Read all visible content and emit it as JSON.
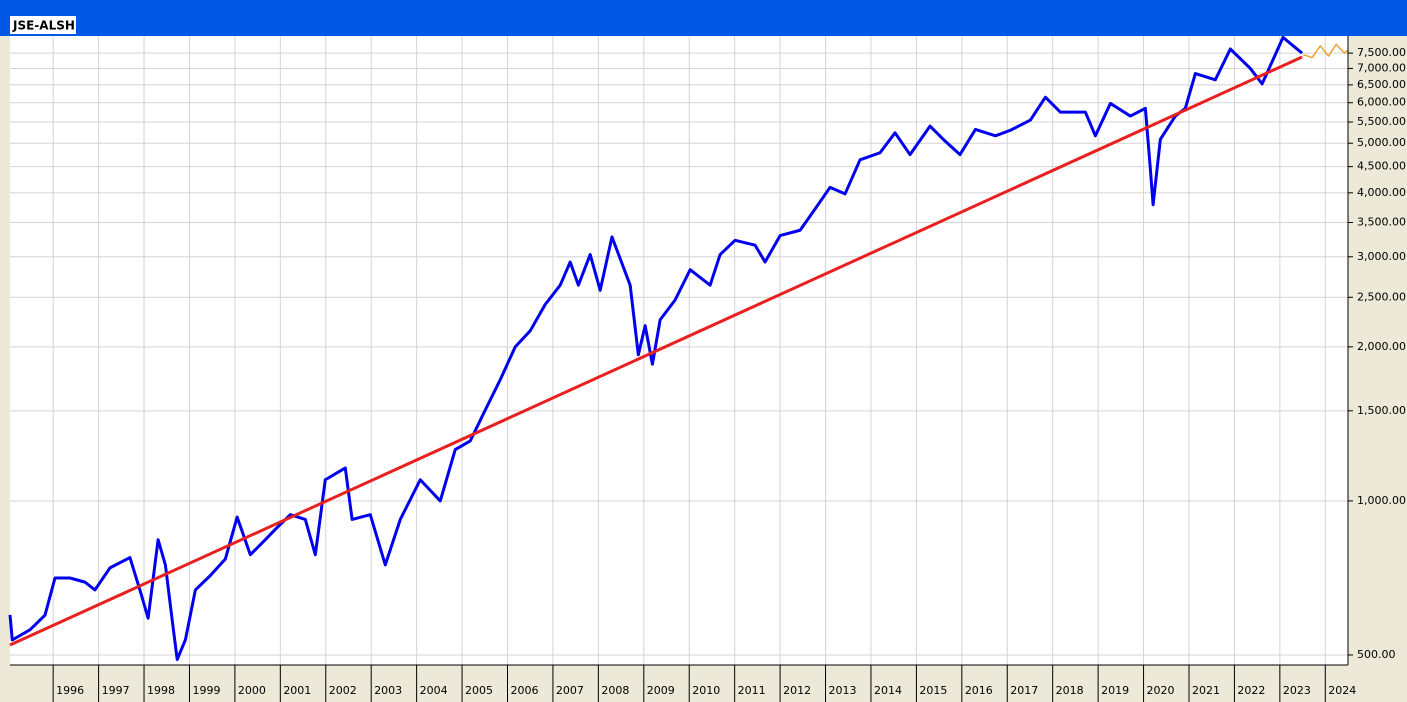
{
  "chart_data": {
    "type": "line",
    "title": "JSE-ALSH",
    "log_scale": true,
    "grid": true,
    "xlim": [
      1995.05,
      2024.5
    ],
    "xticks": [
      1996,
      1997,
      1998,
      1999,
      2000,
      2001,
      2002,
      2003,
      2004,
      2005,
      2006,
      2007,
      2008,
      2009,
      2010,
      2011,
      2012,
      2013,
      2014,
      2015,
      2016,
      2017,
      2018,
      2019,
      2020,
      2021,
      2022,
      2023,
      2024
    ],
    "ylim": [
      478,
      8100
    ],
    "yticks": [
      {
        "value": 500,
        "label": "500.00"
      },
      {
        "value": 1000,
        "label": "1,000.00"
      },
      {
        "value": 1500,
        "label": "1,500.00"
      },
      {
        "value": 2000,
        "label": "2,000.00"
      },
      {
        "value": 2500,
        "label": "2,500.00"
      },
      {
        "value": 3000,
        "label": "3,000.00"
      },
      {
        "value": 3500,
        "label": "3,500.00"
      },
      {
        "value": 4000,
        "label": "4,000.00"
      },
      {
        "value": 4500,
        "label": "4,500.00"
      },
      {
        "value": 5000,
        "label": "5,000.00"
      },
      {
        "value": 5500,
        "label": "5,500.00"
      },
      {
        "value": 6000,
        "label": "6,000.00"
      },
      {
        "value": 6500,
        "label": "6,500.00"
      },
      {
        "value": 7000,
        "label": "7,000.00"
      },
      {
        "value": 7500,
        "label": "7,500.00"
      }
    ],
    "series": [
      {
        "color": "#0000ee",
        "width": 3,
        "x": [
          1995.05,
          1995.1,
          1995.49,
          1995.82,
          1996.04,
          1996.37,
          1996.7,
          1996.92,
          1997.25,
          1997.69,
          1997.92,
          1998.09,
          1998.31,
          1998.47,
          1998.62,
          1998.73,
          1998.91,
          1999.13,
          1999.46,
          1999.79,
          2000.05,
          2000.34,
          2000.67,
          2000.89,
          2001.22,
          2001.55,
          2001.77,
          2001.99,
          2002.43,
          2002.58,
          2002.98,
          2003.31,
          2003.64,
          2004.08,
          2004.52,
          2004.85,
          2005.18,
          2005.51,
          2005.84,
          2006.17,
          2006.5,
          2006.83,
          2007.16,
          2007.38,
          2007.56,
          2007.82,
          2008.04,
          2008.3,
          2008.7,
          2008.88,
          2009.03,
          2009.19,
          2009.36,
          2009.69,
          2010.02,
          2010.46,
          2010.68,
          2011.01,
          2011.45,
          2011.67,
          2012.0,
          2012.44,
          2012.77,
          2013.1,
          2013.43,
          2013.76,
          2014.2,
          2014.53,
          2014.86,
          2015.3,
          2015.63,
          2015.96,
          2016.3,
          2016.74,
          2017.07,
          2017.51,
          2017.84,
          2018.17,
          2018.72,
          2018.94,
          2019.27,
          2019.71,
          2020.04,
          2020.15,
          2020.21,
          2020.37,
          2020.7,
          2020.92,
          2021.14,
          2021.58,
          2021.91,
          2022.35,
          2022.61,
          2022.9,
          2023.07,
          2023.34,
          2023.49
        ],
        "values": [
          599,
          535,
          560,
          598,
          707,
          707,
          694,
          670,
          740,
          775,
          665,
          590,
          840,
          750,
          585,
          490,
          535,
          670,
          715,
          770,
          930,
          785,
          840,
          880,
          940,
          920,
          785,
          1100,
          1160,
          920,
          940,
          750,
          920,
          1100,
          1000,
          1260,
          1310,
          1505,
          1725,
          2000,
          2150,
          2420,
          2640,
          2930,
          2640,
          3030,
          2580,
          3280,
          2640,
          1930,
          2200,
          1850,
          2260,
          2470,
          2830,
          2640,
          3030,
          3230,
          3160,
          2930,
          3300,
          3380,
          3720,
          4100,
          3980,
          4640,
          4790,
          5240,
          4750,
          5400,
          5050,
          4750,
          5320,
          5170,
          5300,
          5550,
          6150,
          5750,
          5750,
          5170,
          5980,
          5650,
          5850,
          4450,
          3790,
          5090,
          5650,
          5850,
          6840,
          6650,
          7640,
          7000,
          6530,
          7450,
          8050,
          7690,
          7500
        ]
      },
      {
        "color": "#e82020",
        "width": 3,
        "x": [
          1995.05,
          2023.49
        ],
        "values": [
          523,
          7370
        ]
      },
      {
        "color": "#f0a030",
        "width": 1.5,
        "x": [
          2023.51,
          2023.71,
          2023.89,
          2024.07,
          2024.24,
          2024.42,
          2024.5
        ],
        "values": [
          7450,
          7350,
          7750,
          7400,
          7800,
          7500,
          7600
        ]
      }
    ]
  }
}
